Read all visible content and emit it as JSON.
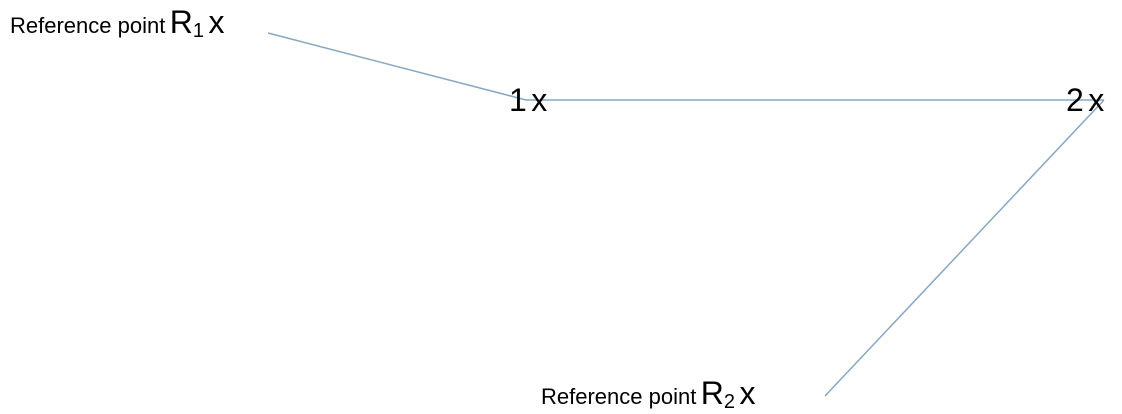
{
  "diagram": {
    "line_color": "#87a7c4",
    "points": {
      "r1": {
        "prefix": "Reference point",
        "letter": "R",
        "subscript": "1",
        "mark": "x"
      },
      "p1": {
        "number": "1",
        "mark": "x"
      },
      "p2": {
        "number": "2",
        "mark": "x"
      },
      "r2": {
        "prefix": "Reference point",
        "letter": "R",
        "subscript": "2",
        "mark": "x"
      }
    }
  }
}
